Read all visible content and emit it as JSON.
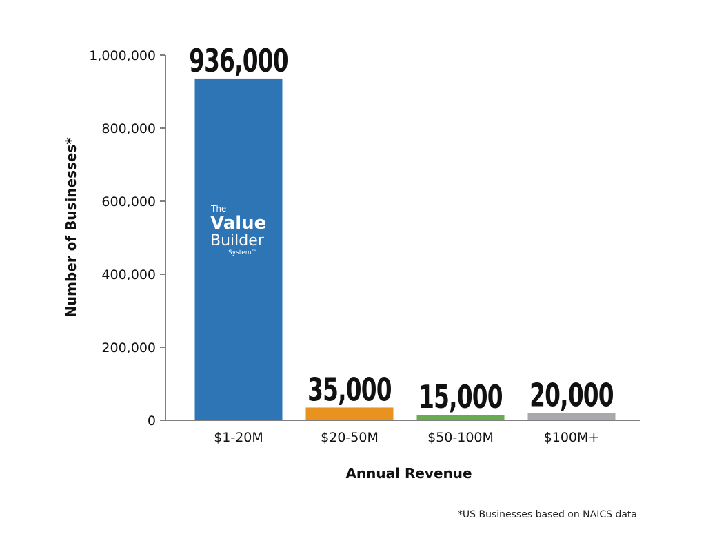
{
  "chart_data": {
    "type": "bar",
    "categories": [
      "$1-20M",
      "$20-50M",
      "$50-100M",
      "$100M+"
    ],
    "values": [
      936000,
      35000,
      15000,
      20000
    ],
    "value_labels": [
      "936,000",
      "35,000",
      "15,000",
      "20,000"
    ],
    "bar_colors": [
      "#2e75b6",
      "#e8921f",
      "#67ad4f",
      "#a7a9ac"
    ],
    "xlabel": "Annual Revenue",
    "ylabel": "Number of Businesses*",
    "ylim": [
      0,
      1000000
    ],
    "yticks": [
      0,
      200000,
      400000,
      600000,
      800000,
      1000000
    ],
    "ytick_labels": [
      "0",
      "200,000",
      "400,000",
      "600,000",
      "800,000",
      "1,000,000"
    ],
    "grid": false,
    "footnote": "*US Businesses based on NAICS data"
  },
  "logo": {
    "line1": "The",
    "line2": "Value",
    "line3": "Builder",
    "line4": "System™"
  }
}
